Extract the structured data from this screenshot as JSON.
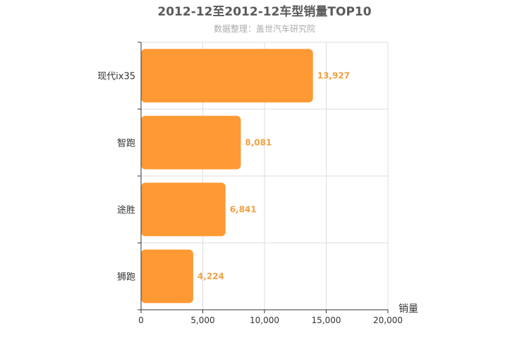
{
  "chart_data": {
    "type": "bar",
    "orientation": "horizontal",
    "title": "2012-12至2012-12车型销量TOP10",
    "subtitle": "数据整理：盖世汽车研究院",
    "xlabel": "销量",
    "ylabel": "",
    "categories": [
      "现代ix35",
      "智跑",
      "途胜",
      "狮跑"
    ],
    "values": [
      13927,
      8081,
      6841,
      4224
    ],
    "value_labels": [
      "13,927",
      "8,081",
      "6,841",
      "4,224"
    ],
    "xlim": [
      0,
      20000
    ],
    "x_ticks": [
      0,
      5000,
      10000,
      15000,
      20000
    ],
    "x_tick_labels": [
      "0",
      "5,000",
      "10,000",
      "15,000",
      "20,000"
    ],
    "grid": true,
    "colors": {
      "bar": "#ff9933",
      "label": "#f0a040",
      "grid": "#dddddd",
      "axis": "#333333"
    }
  }
}
